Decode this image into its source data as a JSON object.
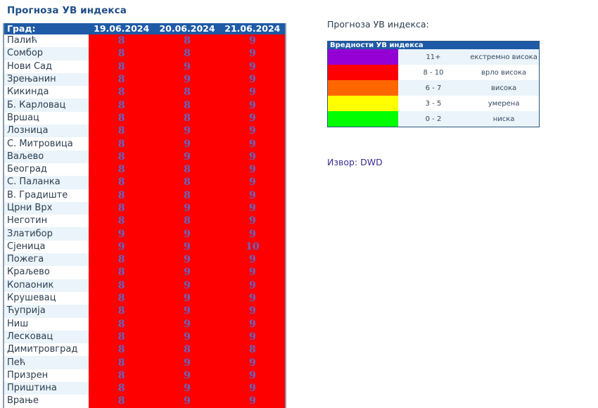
{
  "page": {
    "title": "Прогноза УВ индекса"
  },
  "forecast_table": {
    "headers": {
      "city": "Град:",
      "dates": [
        "19.06.2024",
        "20.06.2024",
        "21.06.2024"
      ]
    },
    "cell_color": "#ff0000",
    "rows": [
      {
        "city": "Палић",
        "values": [
          "8",
          "8",
          "9"
        ]
      },
      {
        "city": "Сомбор",
        "values": [
          "8",
          "8",
          "9"
        ]
      },
      {
        "city": "Нови Сад",
        "values": [
          "8",
          "9",
          "9"
        ]
      },
      {
        "city": "Зрењанин",
        "values": [
          "8",
          "9",
          "9"
        ]
      },
      {
        "city": "Кикинда",
        "values": [
          "8",
          "8",
          "9"
        ]
      },
      {
        "city": "Б. Карловац",
        "values": [
          "8",
          "8",
          "9"
        ]
      },
      {
        "city": "Вршац",
        "values": [
          "8",
          "8",
          "9"
        ]
      },
      {
        "city": "Лозница",
        "values": [
          "8",
          "9",
          "9"
        ]
      },
      {
        "city": "С. Митровица",
        "values": [
          "8",
          "9",
          "9"
        ]
      },
      {
        "city": "Ваљево",
        "values": [
          "8",
          "9",
          "9"
        ]
      },
      {
        "city": "Београд",
        "values": [
          "8",
          "8",
          "9"
        ]
      },
      {
        "city": "С. Паланка",
        "values": [
          "8",
          "8",
          "9"
        ]
      },
      {
        "city": "В. Градиште",
        "values": [
          "8",
          "8",
          "9"
        ]
      },
      {
        "city": "Црни Врх",
        "values": [
          "8",
          "9",
          "9"
        ]
      },
      {
        "city": "Неготин",
        "values": [
          "8",
          "8",
          "9"
        ]
      },
      {
        "city": "Златибор",
        "values": [
          "9",
          "9",
          "9"
        ]
      },
      {
        "city": "Сјеница",
        "values": [
          "9",
          "9",
          "10"
        ]
      },
      {
        "city": "Пожега",
        "values": [
          "8",
          "9",
          "9"
        ]
      },
      {
        "city": "Краљево",
        "values": [
          "8",
          "9",
          "9"
        ]
      },
      {
        "city": "Копаоник",
        "values": [
          "8",
          "9",
          "9"
        ]
      },
      {
        "city": "Крушевац",
        "values": [
          "8",
          "9",
          "9"
        ]
      },
      {
        "city": "Ћуприја",
        "values": [
          "8",
          "9",
          "9"
        ]
      },
      {
        "city": "Ниш",
        "values": [
          "8",
          "9",
          "9"
        ]
      },
      {
        "city": "Лесковац",
        "values": [
          "8",
          "9",
          "9"
        ]
      },
      {
        "city": "Димитровград",
        "values": [
          "8",
          "8",
          "8"
        ]
      },
      {
        "city": "Пећ",
        "values": [
          "8",
          "9",
          "9"
        ]
      },
      {
        "city": "Призрен",
        "values": [
          "8",
          "9",
          "9"
        ]
      },
      {
        "city": "Приштина",
        "values": [
          "8",
          "9",
          "9"
        ]
      },
      {
        "city": "Врање",
        "values": [
          "8",
          "9",
          "9"
        ]
      }
    ]
  },
  "legend": {
    "title": "Прогноза УВ индекса:",
    "header": "Вредности УВ индекса",
    "items": [
      {
        "color": "#9400d3",
        "range": "11+",
        "label": "екстремно висока"
      },
      {
        "color": "#ff0000",
        "range": "8 - 10",
        "label": "врло висока"
      },
      {
        "color": "#ff6600",
        "range": "6 - 7",
        "label": "висока"
      },
      {
        "color": "#ffff00",
        "range": "3 - 5",
        "label": "умерена"
      },
      {
        "color": "#00ff00",
        "range": "0 - 2",
        "label": "ниска"
      }
    ]
  },
  "source": "Извор: DWD"
}
